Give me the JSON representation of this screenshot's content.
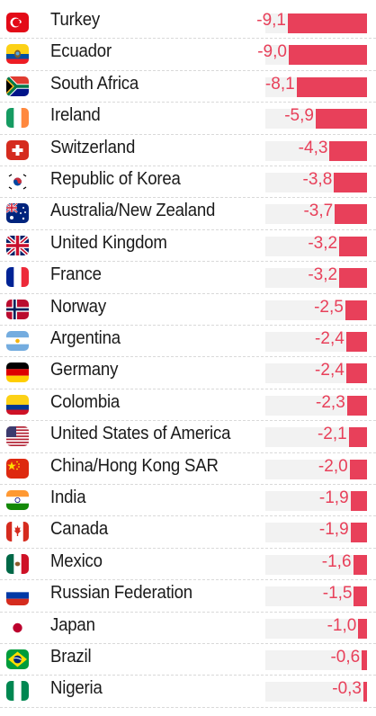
{
  "chart_data": {
    "type": "bar",
    "orientation": "horizontal",
    "bar_color": "#e8405a",
    "track_color": "#f2f2f2",
    "categories": [
      "Turkey",
      "Ecuador",
      "South Africa",
      "Ireland",
      "Switzerland",
      "Republic of Korea",
      "Australia/New Zealand",
      "United Kingdom",
      "France",
      "Norway",
      "Argentina",
      "Germany",
      "Colombia",
      "United States of America",
      "China/Hong Kong SAR",
      "India",
      "Canada",
      "Mexico",
      "Russian Federation",
      "Japan",
      "Brazil",
      "Nigeria"
    ],
    "values": [
      -9.1,
      -9.0,
      -8.1,
      -5.9,
      -4.3,
      -3.8,
      -3.7,
      -3.2,
      -3.2,
      -2.5,
      -2.4,
      -2.4,
      -2.3,
      -2.1,
      -2.0,
      -1.9,
      -1.9,
      -1.6,
      -1.5,
      -1.0,
      -0.6,
      -0.3
    ],
    "value_labels": [
      "-9,1",
      "-9,0",
      "-8,1",
      "-5,9",
      "-4,3",
      "-3,8",
      "-3,7",
      "-3,2",
      "-3,2",
      "-2,5",
      "-2,4",
      "-2,4",
      "-2,3",
      "-2,1",
      "-2,0",
      "-1,9",
      "-1,9",
      "-1,6",
      "-1,5",
      "-1,0",
      "-0,6",
      "-0,3"
    ],
    "flag_icons": [
      "turkey-flag-icon",
      "ecuador-flag-icon",
      "south-africa-flag-icon",
      "ireland-flag-icon",
      "switzerland-flag-icon",
      "south-korea-flag-icon",
      "australia-flag-icon",
      "united-kingdom-flag-icon",
      "france-flag-icon",
      "norway-flag-icon",
      "argentina-flag-icon",
      "germany-flag-icon",
      "colombia-flag-icon",
      "usa-flag-icon",
      "china-flag-icon",
      "india-flag-icon",
      "canada-flag-icon",
      "mexico-flag-icon",
      "russia-flag-icon",
      "japan-flag-icon",
      "brazil-flag-icon",
      "nigeria-flag-icon"
    ],
    "xlim": [
      -9.1,
      0
    ],
    "title": "",
    "xlabel": "",
    "ylabel": ""
  }
}
